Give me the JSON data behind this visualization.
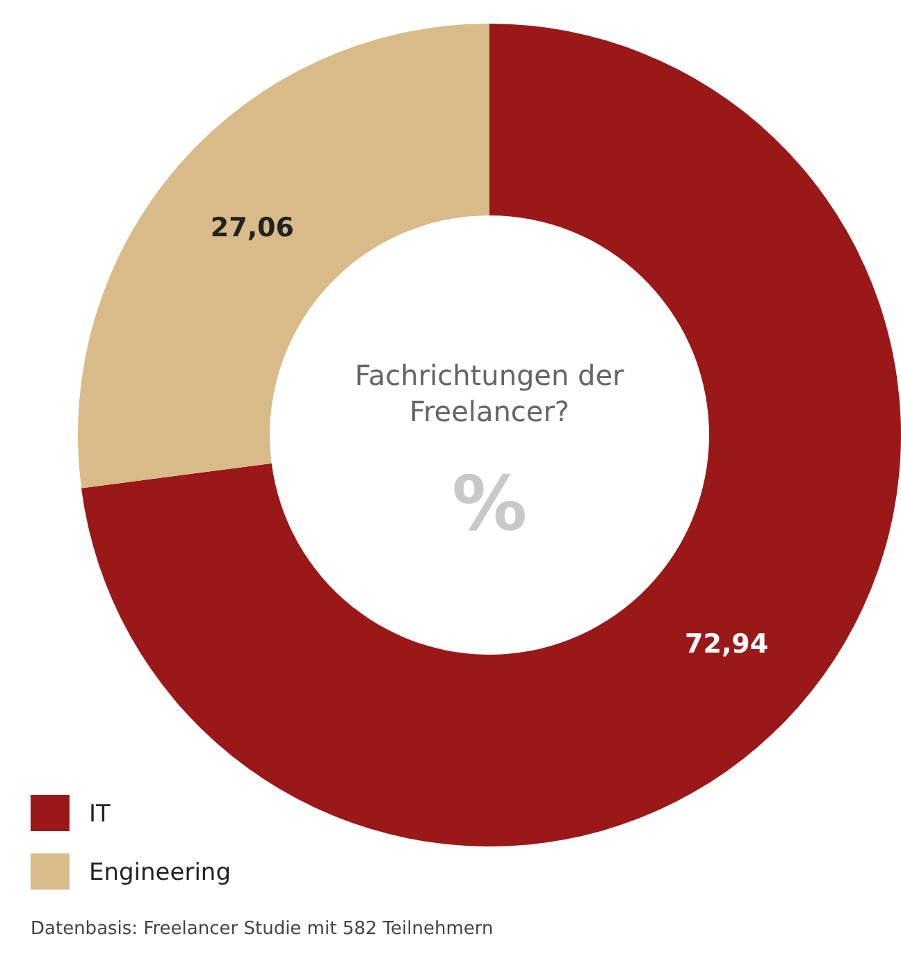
{
  "chart_data": {
    "type": "donut",
    "title": "Fachrichtungen der Freelancer?",
    "subtitle": "%",
    "categories": [
      "IT",
      "Engineering"
    ],
    "values": [
      72.94,
      27.06
    ],
    "colors": [
      "#9b1818",
      "#d8bb88"
    ],
    "value_labels": [
      "72,94",
      "27,06"
    ],
    "legend": "bottom left",
    "annotations": [
      "Datenbasis: Freelancer Studie mit 582 Teilnehmern"
    ]
  }
}
